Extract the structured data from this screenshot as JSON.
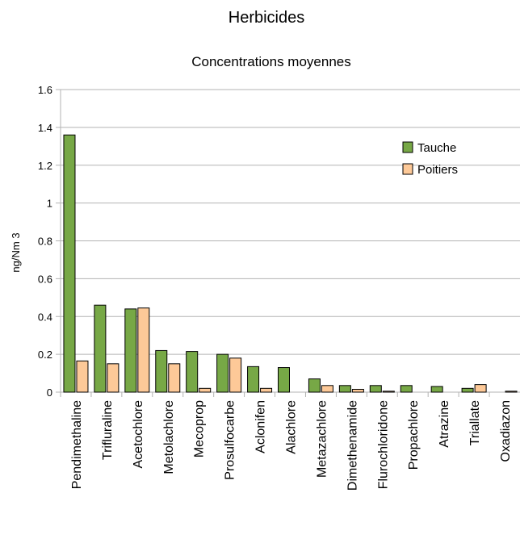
{
  "chart_data": {
    "type": "bar",
    "title": "Herbicides",
    "subtitle": "Concentrations moyennes",
    "ylabel": "ng/Nm 3",
    "xlabel": "",
    "ylim": [
      0,
      1.6
    ],
    "yticks": [
      "0",
      "0.2",
      "0.4",
      "0.6",
      "0.8",
      "1",
      "1.2",
      "1.4",
      "1.6"
    ],
    "grid": true,
    "legend_position": "top-right",
    "categories": [
      "Pendimethaline",
      "Trifluraline",
      "Acetochlore",
      "Metolachlore",
      "Mecoprop",
      "Prosulfocarbe",
      "Aclonifen",
      "Alachlore",
      "Metazachlore",
      "Dimethenamide",
      "Flurochloridone",
      "Propachlore",
      "Atrazine",
      "Triallate",
      "Oxadiazon"
    ],
    "series": [
      {
        "name": "Tauche",
        "color": "#77a846",
        "values": [
          1.36,
          0.46,
          0.44,
          0.22,
          0.215,
          0.2,
          0.135,
          0.13,
          0.07,
          0.035,
          0.035,
          0.035,
          0.03,
          0.02,
          0.0
        ]
      },
      {
        "name": "Poitiers",
        "color": "#fdc998",
        "values": [
          0.165,
          0.15,
          0.445,
          0.15,
          0.02,
          0.18,
          0.02,
          0.0,
          0.035,
          0.015,
          0.005,
          0.0,
          0.0,
          0.04,
          0.005
        ]
      }
    ]
  }
}
